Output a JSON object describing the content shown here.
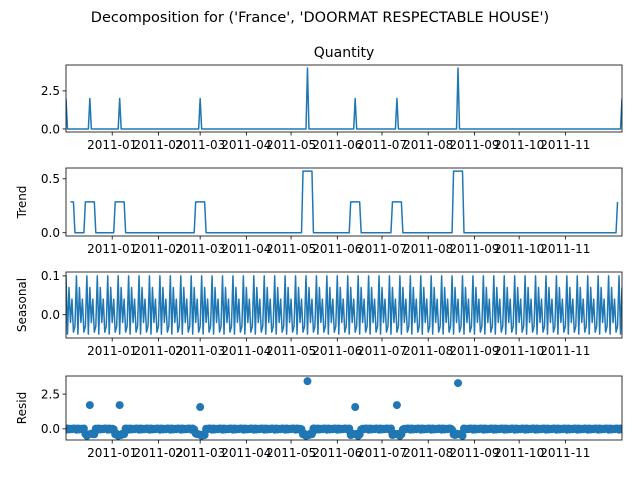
{
  "chart_data": {
    "type": "line",
    "suptitle": "Decomposition for ('France', 'DOORMAT RESPECTABLE HOUSE')",
    "x_range": [
      "2010-12-01",
      "2011-12-09"
    ],
    "x_tick_labels": [
      "2011-01",
      "2011-02",
      "2011-03",
      "2011-04",
      "2011-05",
      "2011-06",
      "2011-07",
      "2011-08",
      "2011-09",
      "2011-10",
      "2011-11"
    ],
    "x_tick_dates": [
      "2011-01-01",
      "2011-02-01",
      "2011-03-01",
      "2011-04-01",
      "2011-05-01",
      "2011-06-01",
      "2011-07-01",
      "2011-08-01",
      "2011-09-01",
      "2011-10-01",
      "2011-11-01"
    ],
    "color": "#1f77b4",
    "panels": [
      {
        "title": "Quantity",
        "ylabel": "",
        "style": "line",
        "ylim": [
          -0.2,
          4.2
        ],
        "yticks": [
          0.0,
          2.5
        ],
        "ytick_labels": [
          "0.0",
          "2.5"
        ],
        "events": [
          {
            "date": "2010-12-01",
            "value": 2
          },
          {
            "date": "2010-12-17",
            "value": 2
          },
          {
            "date": "2011-01-06",
            "value": 2
          },
          {
            "date": "2011-03-01",
            "value": 2
          },
          {
            "date": "2011-05-12",
            "value": 4
          },
          {
            "date": "2011-06-13",
            "value": 2
          },
          {
            "date": "2011-07-11",
            "value": 2
          },
          {
            "date": "2011-08-21",
            "value": 4
          },
          {
            "date": "2011-12-09",
            "value": 2
          }
        ],
        "baseline": 0
      },
      {
        "title": "",
        "ylabel": "Trend",
        "style": "line",
        "ylim": [
          -0.03,
          0.6
        ],
        "yticks": [
          0.0,
          0.5
        ],
        "ytick_labels": [
          "0.0",
          "0.5"
        ],
        "segments": [
          {
            "start": "2010-12-04",
            "end": "2010-12-06",
            "value": 0.286
          },
          {
            "start": "2010-12-14",
            "end": "2010-12-20",
            "value": 0.286
          },
          {
            "start": "2011-01-03",
            "end": "2011-01-09",
            "value": 0.286
          },
          {
            "start": "2011-02-26",
            "end": "2011-03-04",
            "value": 0.286
          },
          {
            "start": "2011-05-09",
            "end": "2011-05-15",
            "value": 0.571
          },
          {
            "start": "2011-06-10",
            "end": "2011-06-16",
            "value": 0.286
          },
          {
            "start": "2011-07-08",
            "end": "2011-07-14",
            "value": 0.286
          },
          {
            "start": "2011-08-18",
            "end": "2011-08-24",
            "value": 0.571
          },
          {
            "start": "2011-12-06",
            "end": "2011-12-06",
            "value": 0.286
          }
        ],
        "trend_start": "2010-12-04",
        "trend_end": "2011-12-06",
        "baseline": 0
      },
      {
        "title": "",
        "ylabel": "Seasonal",
        "style": "line",
        "ylim": [
          -0.06,
          0.11
        ],
        "yticks": [
          0.0,
          0.1
        ],
        "ytick_labels": [
          "0.0",
          "0.1"
        ],
        "weekly_pattern": [
          0.1,
          -0.05,
          0.07,
          -0.02,
          0.04,
          -0.045,
          -0.03
        ]
      },
      {
        "title": "",
        "ylabel": "Resid",
        "style": "scatter",
        "ylim": [
          -0.8,
          3.8
        ],
        "yticks": [
          0.0,
          2.5
        ],
        "ytick_labels": [
          "0.0",
          "2.5"
        ],
        "outliers": [
          {
            "date": "2010-12-17",
            "value": 1.71
          },
          {
            "date": "2011-01-06",
            "value": 1.71
          },
          {
            "date": "2011-03-01",
            "value": 1.57
          },
          {
            "date": "2011-05-12",
            "value": 3.43
          },
          {
            "date": "2011-06-13",
            "value": 1.57
          },
          {
            "date": "2011-07-11",
            "value": 1.71
          },
          {
            "date": "2011-08-21",
            "value": 3.29
          }
        ]
      }
    ]
  }
}
